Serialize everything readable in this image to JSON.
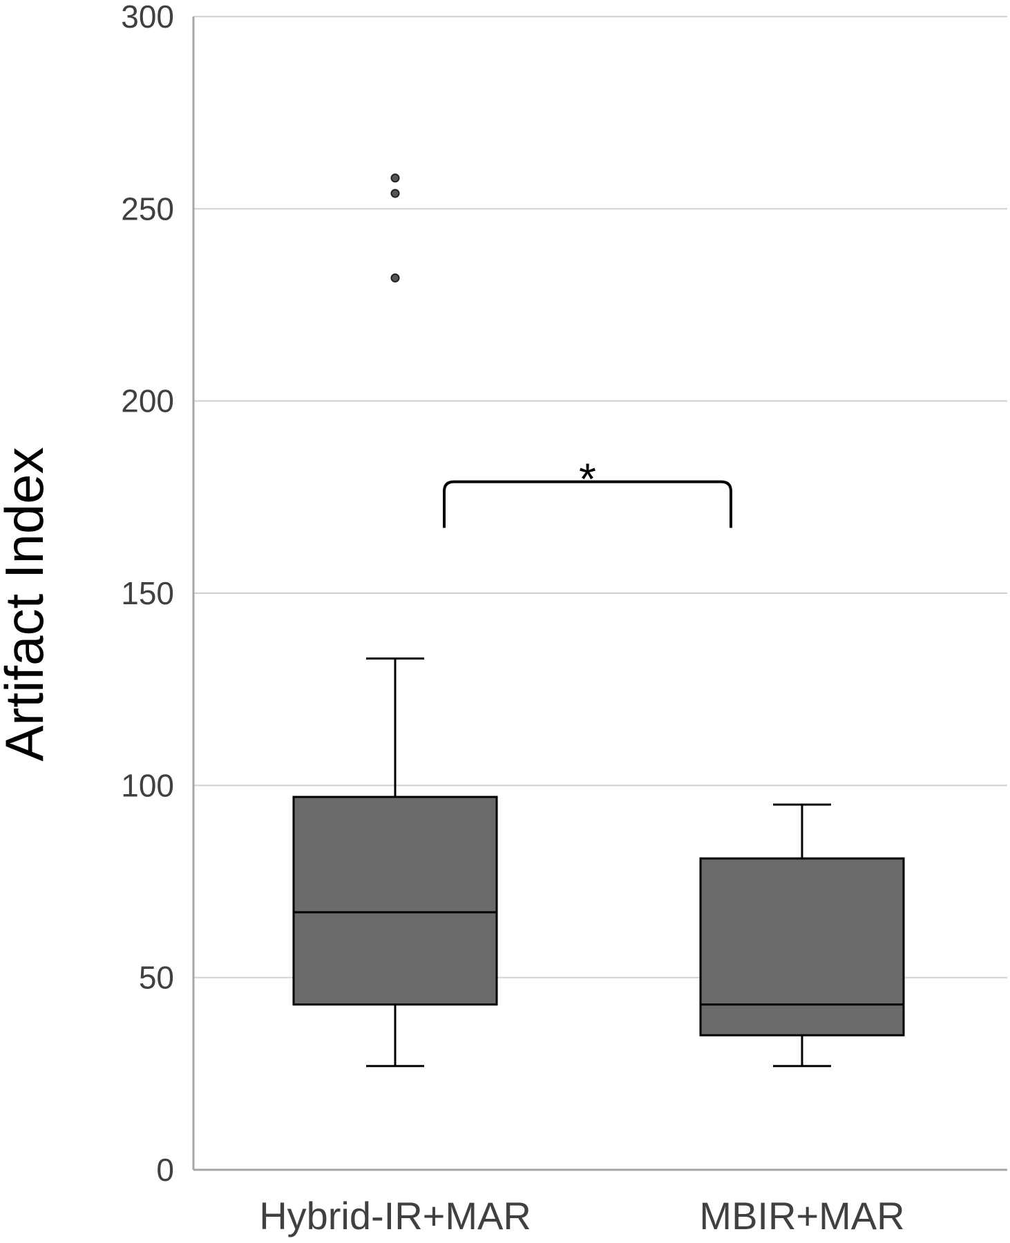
{
  "chart_data": {
    "type": "box",
    "title": "",
    "xlabel": "",
    "ylabel": "Artifact Index",
    "ylim": [
      0,
      300
    ],
    "yticks": [
      0,
      50,
      100,
      150,
      200,
      250,
      300
    ],
    "grid": true,
    "categories": [
      "Hybrid-IR+MAR",
      "MBIR+MAR"
    ],
    "boxes": [
      {
        "category": "Hybrid-IR+MAR",
        "whisker_low": 27,
        "q1": 43,
        "median": 67,
        "q3": 97,
        "whisker_high": 133,
        "outliers": [
          232,
          254,
          258
        ]
      },
      {
        "category": "MBIR+MAR",
        "whisker_low": 27,
        "q1": 35,
        "median": 43,
        "q3": 81,
        "whisker_high": 95,
        "outliers": []
      }
    ],
    "annotations": [
      {
        "type": "significance-bracket",
        "between": [
          "Hybrid-IR+MAR",
          "MBIR+MAR"
        ],
        "label": "*",
        "y": 179,
        "y_bottom": 167
      }
    ],
    "colors": {
      "box_fill": "#6a6a6a",
      "stroke": "#000000",
      "grid": "#d0d0d0",
      "axis": "#a6a6a6"
    }
  }
}
